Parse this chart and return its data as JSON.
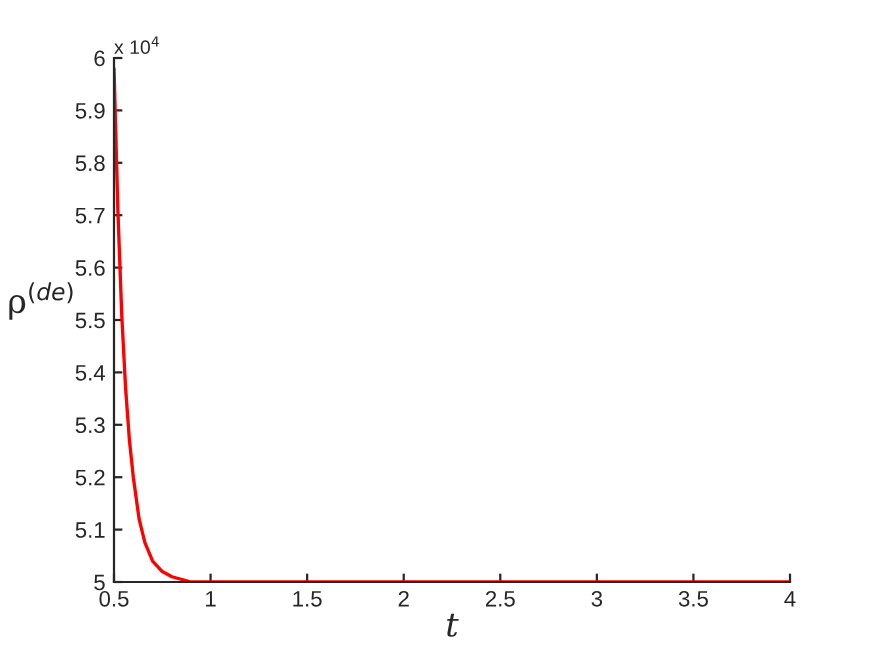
{
  "chart_data": {
    "type": "line",
    "xlabel": "t",
    "ylabel": "ρ$^{(de)}$",
    "x": [
      0.5,
      0.52,
      0.54,
      0.56,
      0.58,
      0.6,
      0.63,
      0.66,
      0.7,
      0.75,
      0.8,
      0.9,
      1,
      2,
      3,
      4
    ],
    "series": [
      {
        "color": "#ff0000",
        "values": [
          5.98,
          5.71,
          5.51,
          5.37,
          5.27,
          5.2,
          5.12,
          5.075,
          5.04,
          5.02,
          5.01,
          5.0,
          5.0,
          5.0,
          5.0,
          5.0
        ]
      }
    ],
    "xlim": [
      0.5,
      4
    ],
    "xticks": [
      0.5,
      1,
      1.5,
      2,
      2.5,
      3,
      3.5,
      4
    ],
    "ylim": [
      5,
      6
    ],
    "yticks": [
      5,
      5.1,
      5.2,
      5.3,
      5.4,
      5.5,
      5.6,
      5.7,
      5.8,
      5.9,
      6
    ],
    "annotations": [
      "x 10$^{4}$"
    ],
    "grid": false,
    "legend": false
  }
}
